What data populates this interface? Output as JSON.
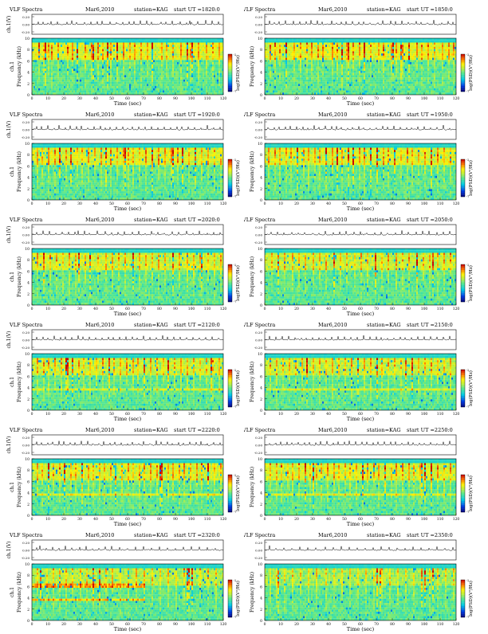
{
  "page": {
    "title_label": "VLF Spectra",
    "date": "Mar6,2010",
    "station": "station=KAG"
  },
  "chart_data": [
    {
      "type": "heatmap",
      "start_ut": "1820:0",
      "seed": 11,
      "spikes": [
        4,
        7,
        10,
        12,
        16,
        22,
        25,
        28,
        33,
        37,
        41,
        44,
        49,
        53,
        57,
        61,
        64,
        68,
        72,
        75,
        81,
        84,
        88,
        93,
        97,
        99,
        100,
        104,
        109,
        113,
        117
      ],
      "strong": [
        8,
        28,
        38,
        47,
        53,
        75,
        97,
        100
      ],
      "bands": [],
      "top_level": 0.9
    },
    {
      "type": "heatmap",
      "start_ut": "1850:0",
      "seed": 23,
      "spikes": [
        3,
        6,
        9,
        13,
        18,
        22,
        26,
        29,
        33,
        36,
        42,
        45,
        48,
        51,
        55,
        59,
        62,
        66,
        71,
        74,
        79,
        82,
        86,
        90,
        95,
        98,
        102,
        106,
        111,
        115,
        118
      ],
      "strong": [
        13,
        48,
        52,
        62,
        80,
        85,
        90
      ],
      "bands": [],
      "top_level": 0.9
    },
    {
      "type": "heatmap",
      "start_ut": "1920:0",
      "seed": 37,
      "spikes": [
        3,
        6,
        10,
        14,
        17,
        21,
        24,
        28,
        31,
        35,
        39,
        43,
        46,
        49,
        53,
        57,
        60,
        63,
        67,
        71,
        75,
        79,
        83,
        87,
        91,
        94,
        98,
        102,
        106,
        110,
        114,
        118
      ],
      "strong": [
        17,
        24,
        46,
        58,
        75,
        88,
        94,
        102
      ],
      "bands": [],
      "top_level": 0.85
    },
    {
      "type": "heatmap",
      "start_ut": "1950:0",
      "seed": 41,
      "spikes": [
        2,
        6,
        9,
        13,
        16,
        20,
        24,
        27,
        31,
        34,
        38,
        42,
        45,
        48,
        52,
        55,
        59,
        62,
        66,
        70,
        74,
        77,
        81,
        85,
        89,
        92,
        96,
        100,
        104,
        108,
        112,
        116
      ],
      "strong": [
        20,
        38,
        45,
        52,
        55,
        66,
        70,
        81,
        104
      ],
      "bands": [],
      "top_level": 0.85
    },
    {
      "type": "heatmap",
      "start_ut": "2020:0",
      "seed": 53,
      "spikes": [
        3,
        7,
        11,
        15,
        19,
        23,
        27,
        29,
        33,
        36,
        41,
        46,
        50,
        54,
        58,
        63,
        67,
        71,
        75,
        79,
        83,
        88,
        92,
        97,
        101,
        105,
        110,
        114,
        118
      ],
      "strong": [
        7,
        29,
        36,
        63,
        88,
        106
      ],
      "bands": [],
      "top_level": 0.75
    },
    {
      "type": "heatmap",
      "start_ut": "2050:0",
      "seed": 67,
      "spikes": [
        4,
        8,
        12,
        17,
        21,
        25,
        30,
        34,
        38,
        43,
        47,
        51,
        56,
        60,
        64,
        69,
        73,
        77,
        82,
        86,
        90,
        95,
        99,
        103,
        108,
        112,
        116
      ],
      "strong": [
        8,
        43,
        69,
        95,
        105
      ],
      "bands": [],
      "top_level": 0.7
    },
    {
      "type": "heatmap",
      "start_ut": "2120:0",
      "seed": 71,
      "spikes": [
        3,
        7,
        10,
        14,
        18,
        21,
        25,
        29,
        32,
        36,
        40,
        44,
        48,
        51,
        55,
        59,
        63,
        66,
        70,
        74,
        78,
        82,
        85,
        89,
        93,
        97,
        101,
        105,
        109,
        113,
        117
      ],
      "strong": [
        21,
        22,
        25,
        48,
        70,
        85,
        112
      ],
      "bands": [
        {
          "y": 3.5,
          "strength": 0.5
        }
      ],
      "top_level": 0.75
    },
    {
      "type": "heatmap",
      "start_ut": "2150:0",
      "seed": 83,
      "spikes": [
        3,
        7,
        11,
        15,
        19,
        23,
        26,
        30,
        34,
        38,
        42,
        46,
        50,
        54,
        58,
        62,
        66,
        70,
        73,
        77,
        81,
        85,
        88,
        92,
        96,
        100,
        104,
        108,
        112,
        116
      ],
      "strong": [
        26,
        58,
        70,
        88,
        92
      ],
      "bands": [
        {
          "y": 3.5,
          "strength": 0.45
        }
      ],
      "top_level": 0.7
    },
    {
      "type": "heatmap",
      "start_ut": "2220:0",
      "seed": 97,
      "spikes": [
        3,
        6,
        10,
        13,
        17,
        20,
        24,
        27,
        31,
        35,
        38,
        42,
        45,
        49,
        52,
        56,
        60,
        63,
        67,
        70,
        74,
        78,
        81,
        85,
        88,
        92,
        95,
        99,
        103,
        106,
        110,
        114,
        118
      ],
      "strong": [
        10,
        20,
        31,
        52,
        80,
        81,
        110
      ],
      "bands": [
        {
          "y": 3.5,
          "strength": 0.55
        }
      ],
      "top_level": 0.8
    },
    {
      "type": "heatmap",
      "start_ut": "2250:0",
      "seed": 101,
      "spikes": [
        3,
        7,
        10,
        14,
        17,
        21,
        25,
        28,
        32,
        35,
        39,
        43,
        46,
        50,
        53,
        57,
        61,
        64,
        68,
        71,
        75,
        79,
        82,
        86,
        90,
        93,
        97,
        100,
        104,
        108,
        112,
        116
      ],
      "strong": [
        25,
        30,
        61,
        75,
        98,
        100,
        104
      ],
      "bands": [
        {
          "y": 3.5,
          "strength": 0.5
        }
      ],
      "top_level": 0.8
    },
    {
      "type": "heatmap",
      "start_ut": "2320:0",
      "seed": 113,
      "spikes": [
        3,
        5,
        9,
        13,
        17,
        21,
        25,
        30,
        34,
        38,
        42,
        46,
        50,
        55,
        60,
        65,
        70,
        75,
        80,
        85,
        90,
        95,
        100,
        105,
        110,
        115
      ],
      "strong": [
        5,
        38,
        42,
        97,
        98,
        100
      ],
      "bands": [
        {
          "y": 3.5,
          "strength": 0.85,
          "x_end": 70
        },
        {
          "y": 5.8,
          "strength": 0.9,
          "x_end": 70
        },
        {
          "y": 6.2,
          "strength": 0.6,
          "x_end": 70
        }
      ],
      "top_level": 0.6
    },
    {
      "type": "heatmap",
      "start_ut": "2350:0",
      "seed": 127,
      "spikes": [
        3,
        7,
        12,
        17,
        22,
        27,
        32,
        38,
        43,
        48,
        53,
        58,
        63,
        68,
        73,
        78,
        83,
        88,
        93,
        98,
        103,
        108,
        113,
        118
      ],
      "strong": [
        8,
        70,
        72,
        98,
        100,
        105
      ],
      "bands": [],
      "top_level": 0.45
    }
  ],
  "axes": {
    "ch_label": "ch.1(V)",
    "ch_ticks": [
      "0.20",
      "0.00",
      "-0.20"
    ],
    "freq_label_top": "ch.1",
    "freq_label": "Frequency (kHz)",
    "freq_ticks": [
      "10",
      "8",
      "6",
      "4",
      "2",
      "0"
    ],
    "xlabel": "Time (sec)",
    "x_ticks": [
      "0",
      "10",
      "20",
      "30",
      "40",
      "50",
      "60",
      "70",
      "80",
      "90",
      "100",
      "110",
      "120"
    ],
    "cbar_label": "log(PSD)(V²/Hz)",
    "cbar_ticks": [
      "-2",
      "-7"
    ]
  }
}
